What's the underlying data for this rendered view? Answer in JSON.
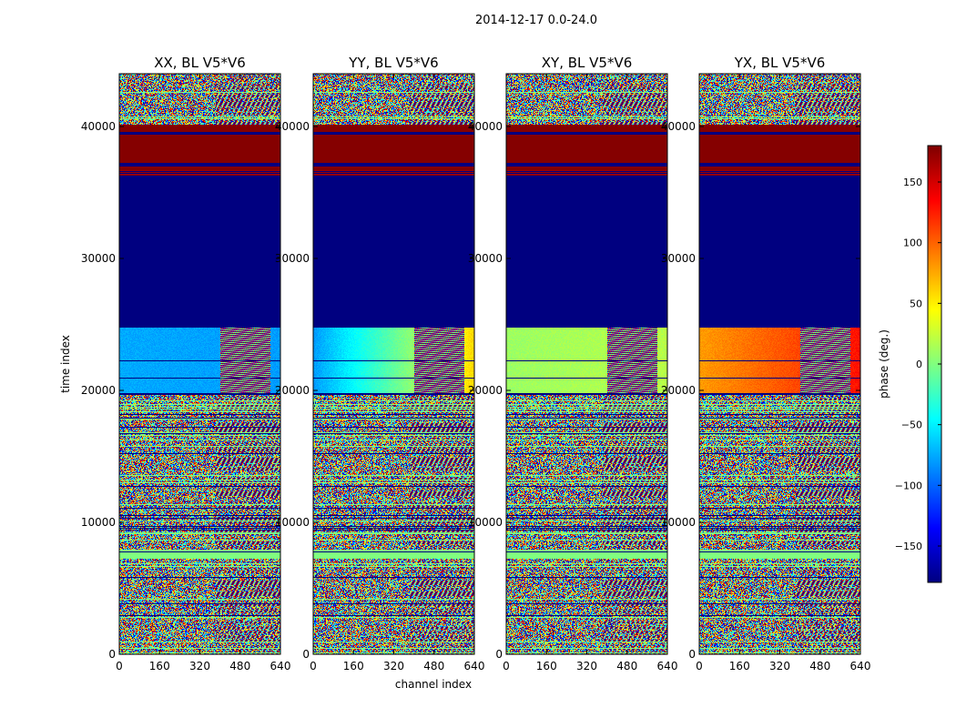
{
  "chart_data": {
    "type": "heatmap",
    "suptitle": "2014-12-17 0.0-24.0",
    "xlabel": "channel index",
    "ylabel": "time index",
    "xlim": [
      0,
      640
    ],
    "ylim": [
      0,
      44000
    ],
    "xticks": [
      0,
      160,
      320,
      480,
      640
    ],
    "xtick_labels": [
      "0",
      "160",
      "320",
      "480",
      "640"
    ],
    "yticks": [
      0,
      10000,
      20000,
      30000,
      40000
    ],
    "ytick_labels": [
      "0",
      "10000",
      "20000",
      "30000",
      "40000"
    ],
    "panels": [
      {
        "title": "XX, BL V5*V6",
        "block_phase_start": -75,
        "block_phase_end": -80
      },
      {
        "title": "YY, BL V5*V6",
        "block_phase_start": -80,
        "block_phase_end": 60
      },
      {
        "title": "XY, BL V5*V6",
        "block_phase_start": 10,
        "block_phase_end": 20
      },
      {
        "title": "YX, BL V5*V6",
        "block_phase_start": 80,
        "block_phase_end": 130
      }
    ],
    "colorbar": {
      "label": "phase (deg.)",
      "range": [
        -180,
        180
      ],
      "ticks": [
        -150,
        -100,
        -50,
        0,
        50,
        100,
        150
      ],
      "tick_labels": [
        "−150",
        "−100",
        "−50",
        "0",
        "50",
        "100",
        "150"
      ],
      "colormap": "jet"
    }
  }
}
